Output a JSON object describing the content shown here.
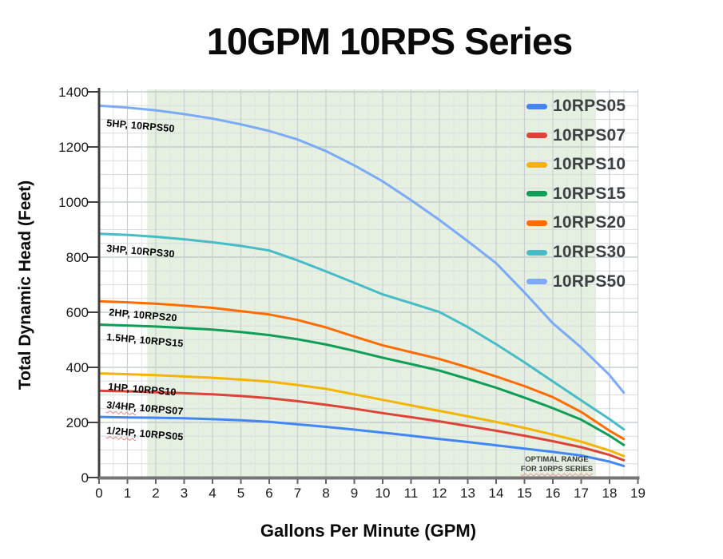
{
  "chart_data": {
    "type": "line",
    "title": "10GPM 10RPS Series",
    "xlabel": "Gallons Per Minute (GPM)",
    "ylabel": "Total Dynamic Head (Feet)",
    "xlim": [
      0,
      19
    ],
    "ylim": [
      0,
      1400
    ],
    "x_ticks": [
      0,
      1,
      2,
      3,
      4,
      5,
      6,
      7,
      8,
      9,
      10,
      11,
      12,
      13,
      14,
      15,
      16,
      17,
      18,
      19
    ],
    "y_ticks": [
      0,
      200,
      400,
      600,
      800,
      1000,
      1200,
      1400
    ],
    "x_minor_step": 0.5,
    "y_minor_step": 50,
    "grid": true,
    "legend_position": "inside-top-right",
    "optimal_band": {
      "x_start": 1.7,
      "x_end": 17.5,
      "color": "#e5f0e1",
      "label_line1": "OPTIMAL RANGE",
      "label_line2": "FOR 10RPS SERIES"
    },
    "series": [
      {
        "name": "10RPS05",
        "color": "#4285f4",
        "points": [
          [
            0,
            220
          ],
          [
            1,
            218
          ],
          [
            2,
            217
          ],
          [
            3,
            215
          ],
          [
            4,
            212
          ],
          [
            5,
            208
          ],
          [
            6,
            202
          ],
          [
            7,
            193
          ],
          [
            8,
            184
          ],
          [
            9,
            174
          ],
          [
            10,
            163
          ],
          [
            11,
            152
          ],
          [
            12,
            140
          ],
          [
            13,
            129
          ],
          [
            14,
            117
          ],
          [
            15,
            105
          ],
          [
            16,
            93
          ],
          [
            17,
            80
          ],
          [
            18,
            58
          ],
          [
            18.5,
            42
          ]
        ]
      },
      {
        "name": "10RPS07",
        "color": "#db4437",
        "points": [
          [
            0,
            315
          ],
          [
            1,
            313
          ],
          [
            2,
            310
          ],
          [
            3,
            306
          ],
          [
            4,
            302
          ],
          [
            5,
            296
          ],
          [
            6,
            288
          ],
          [
            7,
            277
          ],
          [
            8,
            264
          ],
          [
            9,
            250
          ],
          [
            10,
            234
          ],
          [
            11,
            219
          ],
          [
            12,
            204
          ],
          [
            13,
            187
          ],
          [
            14,
            170
          ],
          [
            15,
            152
          ],
          [
            16,
            132
          ],
          [
            17,
            110
          ],
          [
            18,
            82
          ],
          [
            18.5,
            63
          ]
        ]
      },
      {
        "name": "10RPS10",
        "color": "#f4b400",
        "points": [
          [
            0,
            378
          ],
          [
            1,
            375
          ],
          [
            2,
            372
          ],
          [
            3,
            367
          ],
          [
            4,
            362
          ],
          [
            5,
            356
          ],
          [
            6,
            348
          ],
          [
            7,
            336
          ],
          [
            8,
            322
          ],
          [
            9,
            302
          ],
          [
            10,
            282
          ],
          [
            11,
            262
          ],
          [
            12,
            242
          ],
          [
            13,
            222
          ],
          [
            14,
            202
          ],
          [
            15,
            180
          ],
          [
            16,
            156
          ],
          [
            17,
            130
          ],
          [
            18,
            98
          ],
          [
            18.5,
            78
          ]
        ]
      },
      {
        "name": "10RPS15",
        "color": "#0f9d58",
        "points": [
          [
            0,
            555
          ],
          [
            1,
            552
          ],
          [
            2,
            548
          ],
          [
            3,
            543
          ],
          [
            4,
            537
          ],
          [
            5,
            528
          ],
          [
            6,
            517
          ],
          [
            7,
            502
          ],
          [
            8,
            483
          ],
          [
            9,
            460
          ],
          [
            10,
            435
          ],
          [
            11,
            412
          ],
          [
            12,
            388
          ],
          [
            13,
            358
          ],
          [
            14,
            326
          ],
          [
            15,
            290
          ],
          [
            16,
            252
          ],
          [
            17,
            210
          ],
          [
            18,
            152
          ],
          [
            18.5,
            118
          ]
        ]
      },
      {
        "name": "10RPS20",
        "color": "#ff6d01",
        "points": [
          [
            0,
            640
          ],
          [
            1,
            636
          ],
          [
            2,
            631
          ],
          [
            3,
            624
          ],
          [
            4,
            616
          ],
          [
            5,
            604
          ],
          [
            6,
            592
          ],
          [
            7,
            572
          ],
          [
            8,
            545
          ],
          [
            9,
            512
          ],
          [
            10,
            480
          ],
          [
            11,
            455
          ],
          [
            12,
            430
          ],
          [
            13,
            400
          ],
          [
            14,
            367
          ],
          [
            15,
            332
          ],
          [
            16,
            292
          ],
          [
            17,
            238
          ],
          [
            18,
            170
          ],
          [
            18.5,
            140
          ]
        ]
      },
      {
        "name": "10RPS30",
        "color": "#46bdc6",
        "points": [
          [
            0,
            885
          ],
          [
            1,
            881
          ],
          [
            2,
            874
          ],
          [
            3,
            865
          ],
          [
            4,
            854
          ],
          [
            5,
            841
          ],
          [
            6,
            824
          ],
          [
            7,
            788
          ],
          [
            8,
            748
          ],
          [
            9,
            707
          ],
          [
            10,
            665
          ],
          [
            11,
            633
          ],
          [
            12,
            601
          ],
          [
            13,
            546
          ],
          [
            14,
            484
          ],
          [
            15,
            418
          ],
          [
            16,
            349
          ],
          [
            17,
            280
          ],
          [
            18,
            212
          ],
          [
            18.5,
            175
          ]
        ]
      },
      {
        "name": "10RPS50",
        "color": "#7baaf7",
        "points": [
          [
            0,
            1350
          ],
          [
            1,
            1343
          ],
          [
            2,
            1333
          ],
          [
            3,
            1319
          ],
          [
            4,
            1303
          ],
          [
            5,
            1282
          ],
          [
            6,
            1258
          ],
          [
            7,
            1227
          ],
          [
            8,
            1185
          ],
          [
            9,
            1133
          ],
          [
            10,
            1075
          ],
          [
            11,
            1007
          ],
          [
            12,
            935
          ],
          [
            13,
            858
          ],
          [
            14,
            778
          ],
          [
            15,
            672
          ],
          [
            16,
            560
          ],
          [
            17,
            472
          ],
          [
            18,
            372
          ],
          [
            18.5,
            308
          ]
        ]
      }
    ],
    "annotations": [
      {
        "prefix": "5HP,",
        "suffix": " 10RPS50",
        "x": 0.28,
        "y": 1285,
        "underline": false
      },
      {
        "prefix": "3HP,",
        "suffix": " 10RPS30",
        "x": 0.28,
        "y": 830,
        "underline": false
      },
      {
        "prefix": "2HP,",
        "suffix": " 10RPS20",
        "x": 0.38,
        "y": 597,
        "underline": false
      },
      {
        "prefix": "1.5HP,",
        "suffix": " 10RPS15",
        "x": 0.28,
        "y": 507,
        "underline": false
      },
      {
        "prefix": "1HP,",
        "suffix": " 10RPS10",
        "x": 0.33,
        "y": 328,
        "underline": false
      },
      {
        "prefix": "3/4HP,",
        "suffix": " 10RPS07",
        "x": 0.28,
        "y": 262,
        "underline": true
      },
      {
        "prefix": "1/2HP,",
        "suffix": " 10RPS05",
        "x": 0.28,
        "y": 168,
        "underline": true
      }
    ]
  }
}
